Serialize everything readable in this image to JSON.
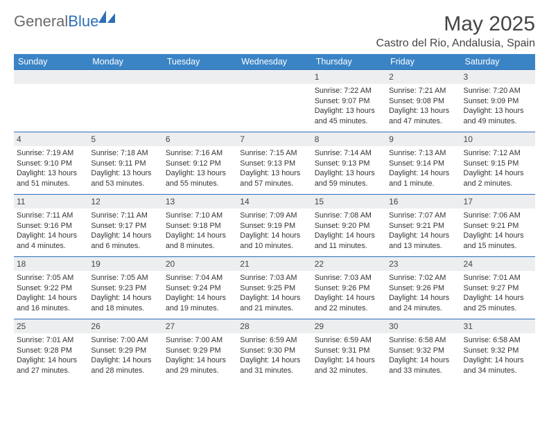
{
  "brand": {
    "name_gray": "General",
    "name_blue": "Blue"
  },
  "title": "May 2025",
  "location": "Castro del Rio, Andalusia, Spain",
  "colors": {
    "header_bg": "#3a84c6",
    "header_text": "#ffffff",
    "rule": "#2b6fb5",
    "daynum_bg": "#eceef0",
    "body_text": "#333333",
    "logo_gray": "#6b6b6b",
    "logo_blue": "#2b6fb5"
  },
  "day_headers": [
    "Sunday",
    "Monday",
    "Tuesday",
    "Wednesday",
    "Thursday",
    "Friday",
    "Saturday"
  ],
  "weeks": [
    [
      {
        "day": "",
        "lines": []
      },
      {
        "day": "",
        "lines": []
      },
      {
        "day": "",
        "lines": []
      },
      {
        "day": "",
        "lines": []
      },
      {
        "day": "1",
        "lines": [
          "Sunrise: 7:22 AM",
          "Sunset: 9:07 PM",
          "Daylight: 13 hours and 45 minutes."
        ]
      },
      {
        "day": "2",
        "lines": [
          "Sunrise: 7:21 AM",
          "Sunset: 9:08 PM",
          "Daylight: 13 hours and 47 minutes."
        ]
      },
      {
        "day": "3",
        "lines": [
          "Sunrise: 7:20 AM",
          "Sunset: 9:09 PM",
          "Daylight: 13 hours and 49 minutes."
        ]
      }
    ],
    [
      {
        "day": "4",
        "lines": [
          "Sunrise: 7:19 AM",
          "Sunset: 9:10 PM",
          "Daylight: 13 hours and 51 minutes."
        ]
      },
      {
        "day": "5",
        "lines": [
          "Sunrise: 7:18 AM",
          "Sunset: 9:11 PM",
          "Daylight: 13 hours and 53 minutes."
        ]
      },
      {
        "day": "6",
        "lines": [
          "Sunrise: 7:16 AM",
          "Sunset: 9:12 PM",
          "Daylight: 13 hours and 55 minutes."
        ]
      },
      {
        "day": "7",
        "lines": [
          "Sunrise: 7:15 AM",
          "Sunset: 9:13 PM",
          "Daylight: 13 hours and 57 minutes."
        ]
      },
      {
        "day": "8",
        "lines": [
          "Sunrise: 7:14 AM",
          "Sunset: 9:13 PM",
          "Daylight: 13 hours and 59 minutes."
        ]
      },
      {
        "day": "9",
        "lines": [
          "Sunrise: 7:13 AM",
          "Sunset: 9:14 PM",
          "Daylight: 14 hours and 1 minute."
        ]
      },
      {
        "day": "10",
        "lines": [
          "Sunrise: 7:12 AM",
          "Sunset: 9:15 PM",
          "Daylight: 14 hours and 2 minutes."
        ]
      }
    ],
    [
      {
        "day": "11",
        "lines": [
          "Sunrise: 7:11 AM",
          "Sunset: 9:16 PM",
          "Daylight: 14 hours and 4 minutes."
        ]
      },
      {
        "day": "12",
        "lines": [
          "Sunrise: 7:11 AM",
          "Sunset: 9:17 PM",
          "Daylight: 14 hours and 6 minutes."
        ]
      },
      {
        "day": "13",
        "lines": [
          "Sunrise: 7:10 AM",
          "Sunset: 9:18 PM",
          "Daylight: 14 hours and 8 minutes."
        ]
      },
      {
        "day": "14",
        "lines": [
          "Sunrise: 7:09 AM",
          "Sunset: 9:19 PM",
          "Daylight: 14 hours and 10 minutes."
        ]
      },
      {
        "day": "15",
        "lines": [
          "Sunrise: 7:08 AM",
          "Sunset: 9:20 PM",
          "Daylight: 14 hours and 11 minutes."
        ]
      },
      {
        "day": "16",
        "lines": [
          "Sunrise: 7:07 AM",
          "Sunset: 9:21 PM",
          "Daylight: 14 hours and 13 minutes."
        ]
      },
      {
        "day": "17",
        "lines": [
          "Sunrise: 7:06 AM",
          "Sunset: 9:21 PM",
          "Daylight: 14 hours and 15 minutes."
        ]
      }
    ],
    [
      {
        "day": "18",
        "lines": [
          "Sunrise: 7:05 AM",
          "Sunset: 9:22 PM",
          "Daylight: 14 hours and 16 minutes."
        ]
      },
      {
        "day": "19",
        "lines": [
          "Sunrise: 7:05 AM",
          "Sunset: 9:23 PM",
          "Daylight: 14 hours and 18 minutes."
        ]
      },
      {
        "day": "20",
        "lines": [
          "Sunrise: 7:04 AM",
          "Sunset: 9:24 PM",
          "Daylight: 14 hours and 19 minutes."
        ]
      },
      {
        "day": "21",
        "lines": [
          "Sunrise: 7:03 AM",
          "Sunset: 9:25 PM",
          "Daylight: 14 hours and 21 minutes."
        ]
      },
      {
        "day": "22",
        "lines": [
          "Sunrise: 7:03 AM",
          "Sunset: 9:26 PM",
          "Daylight: 14 hours and 22 minutes."
        ]
      },
      {
        "day": "23",
        "lines": [
          "Sunrise: 7:02 AM",
          "Sunset: 9:26 PM",
          "Daylight: 14 hours and 24 minutes."
        ]
      },
      {
        "day": "24",
        "lines": [
          "Sunrise: 7:01 AM",
          "Sunset: 9:27 PM",
          "Daylight: 14 hours and 25 minutes."
        ]
      }
    ],
    [
      {
        "day": "25",
        "lines": [
          "Sunrise: 7:01 AM",
          "Sunset: 9:28 PM",
          "Daylight: 14 hours and 27 minutes."
        ]
      },
      {
        "day": "26",
        "lines": [
          "Sunrise: 7:00 AM",
          "Sunset: 9:29 PM",
          "Daylight: 14 hours and 28 minutes."
        ]
      },
      {
        "day": "27",
        "lines": [
          "Sunrise: 7:00 AM",
          "Sunset: 9:29 PM",
          "Daylight: 14 hours and 29 minutes."
        ]
      },
      {
        "day": "28",
        "lines": [
          "Sunrise: 6:59 AM",
          "Sunset: 9:30 PM",
          "Daylight: 14 hours and 31 minutes."
        ]
      },
      {
        "day": "29",
        "lines": [
          "Sunrise: 6:59 AM",
          "Sunset: 9:31 PM",
          "Daylight: 14 hours and 32 minutes."
        ]
      },
      {
        "day": "30",
        "lines": [
          "Sunrise: 6:58 AM",
          "Sunset: 9:32 PM",
          "Daylight: 14 hours and 33 minutes."
        ]
      },
      {
        "day": "31",
        "lines": [
          "Sunrise: 6:58 AM",
          "Sunset: 9:32 PM",
          "Daylight: 14 hours and 34 minutes."
        ]
      }
    ]
  ]
}
